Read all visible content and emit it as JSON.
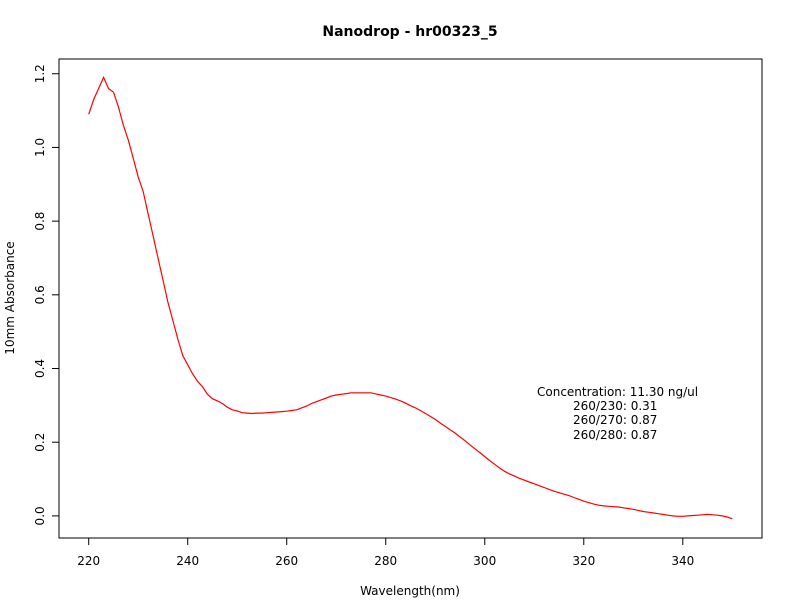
{
  "chart_data": {
    "type": "line",
    "title": "Nanodrop - hr00323_5",
    "xlabel": "Wavelength(nm)",
    "ylabel": "10mm Absorbance",
    "xlim": [
      214,
      356
    ],
    "ylim": [
      -0.06,
      1.24
    ],
    "xticks": [
      220,
      240,
      260,
      280,
      300,
      320,
      340
    ],
    "yticks": [
      0.0,
      0.2,
      0.4,
      0.6,
      0.8,
      1.0,
      1.2
    ],
    "xtick_labels": [
      "220",
      "240",
      "260",
      "280",
      "300",
      "320",
      "340"
    ],
    "ytick_labels": [
      "0.0",
      "0.2",
      "0.4",
      "0.6",
      "0.8",
      "1.0",
      "1.2"
    ],
    "grid": false,
    "legend": "none",
    "series": [
      {
        "color": "#ff0000",
        "x": [
          220,
          221,
          222,
          223,
          224,
          225,
          226,
          227,
          228,
          229,
          230,
          231,
          232,
          233,
          234,
          235,
          236,
          237,
          238,
          239,
          240,
          241,
          242,
          243,
          244,
          245,
          246,
          247,
          248,
          249,
          250,
          251,
          252,
          253,
          254,
          255,
          256,
          257,
          258,
          259,
          260,
          261,
          262,
          263,
          264,
          265,
          266,
          267,
          268,
          269,
          270,
          271,
          272,
          273,
          274,
          275,
          276,
          277,
          278,
          279,
          280,
          281,
          282,
          283,
          284,
          285,
          286,
          287,
          288,
          289,
          290,
          291,
          292,
          293,
          294,
          295,
          296,
          297,
          298,
          299,
          300,
          301,
          302,
          303,
          304,
          305,
          306,
          307,
          308,
          309,
          310,
          311,
          312,
          313,
          314,
          315,
          316,
          317,
          318,
          319,
          320,
          321,
          322,
          323,
          324,
          325,
          326,
          327,
          328,
          329,
          330,
          331,
          332,
          333,
          334,
          335,
          336,
          337,
          338,
          339,
          340,
          341,
          342,
          343,
          344,
          345,
          346,
          347,
          348,
          349,
          350
        ],
        "y": [
          1.09,
          1.13,
          1.16,
          1.19,
          1.16,
          1.15,
          1.11,
          1.06,
          1.02,
          0.97,
          0.92,
          0.88,
          0.82,
          0.76,
          0.7,
          0.64,
          0.58,
          0.53,
          0.48,
          0.435,
          0.41,
          0.385,
          0.365,
          0.35,
          0.33,
          0.318,
          0.312,
          0.305,
          0.295,
          0.288,
          0.285,
          0.28,
          0.279,
          0.278,
          0.279,
          0.279,
          0.28,
          0.281,
          0.282,
          0.283,
          0.284,
          0.286,
          0.288,
          0.293,
          0.298,
          0.305,
          0.31,
          0.315,
          0.32,
          0.325,
          0.328,
          0.33,
          0.332,
          0.334,
          0.334,
          0.334,
          0.334,
          0.334,
          0.331,
          0.328,
          0.325,
          0.321,
          0.317,
          0.312,
          0.306,
          0.299,
          0.293,
          0.286,
          0.278,
          0.27,
          0.262,
          0.252,
          0.243,
          0.234,
          0.225,
          0.214,
          0.204,
          0.193,
          0.182,
          0.172,
          0.161,
          0.15,
          0.14,
          0.13,
          0.121,
          0.114,
          0.108,
          0.102,
          0.097,
          0.092,
          0.087,
          0.082,
          0.077,
          0.072,
          0.067,
          0.063,
          0.059,
          0.055,
          0.05,
          0.045,
          0.04,
          0.036,
          0.032,
          0.029,
          0.027,
          0.026,
          0.025,
          0.024,
          0.022,
          0.02,
          0.018,
          0.015,
          0.012,
          0.01,
          0.008,
          0.006,
          0.004,
          0.002,
          0.0,
          -0.001,
          -0.001,
          0.0,
          0.001,
          0.002,
          0.003,
          0.004,
          0.003,
          0.002,
          0.0,
          -0.003,
          -0.008
        ]
      }
    ],
    "annotations": [
      "Concentration: 11.30 ng/ul",
      "260/230: 0.31",
      "260/270: 0.87",
      "260/280: 0.87"
    ]
  }
}
